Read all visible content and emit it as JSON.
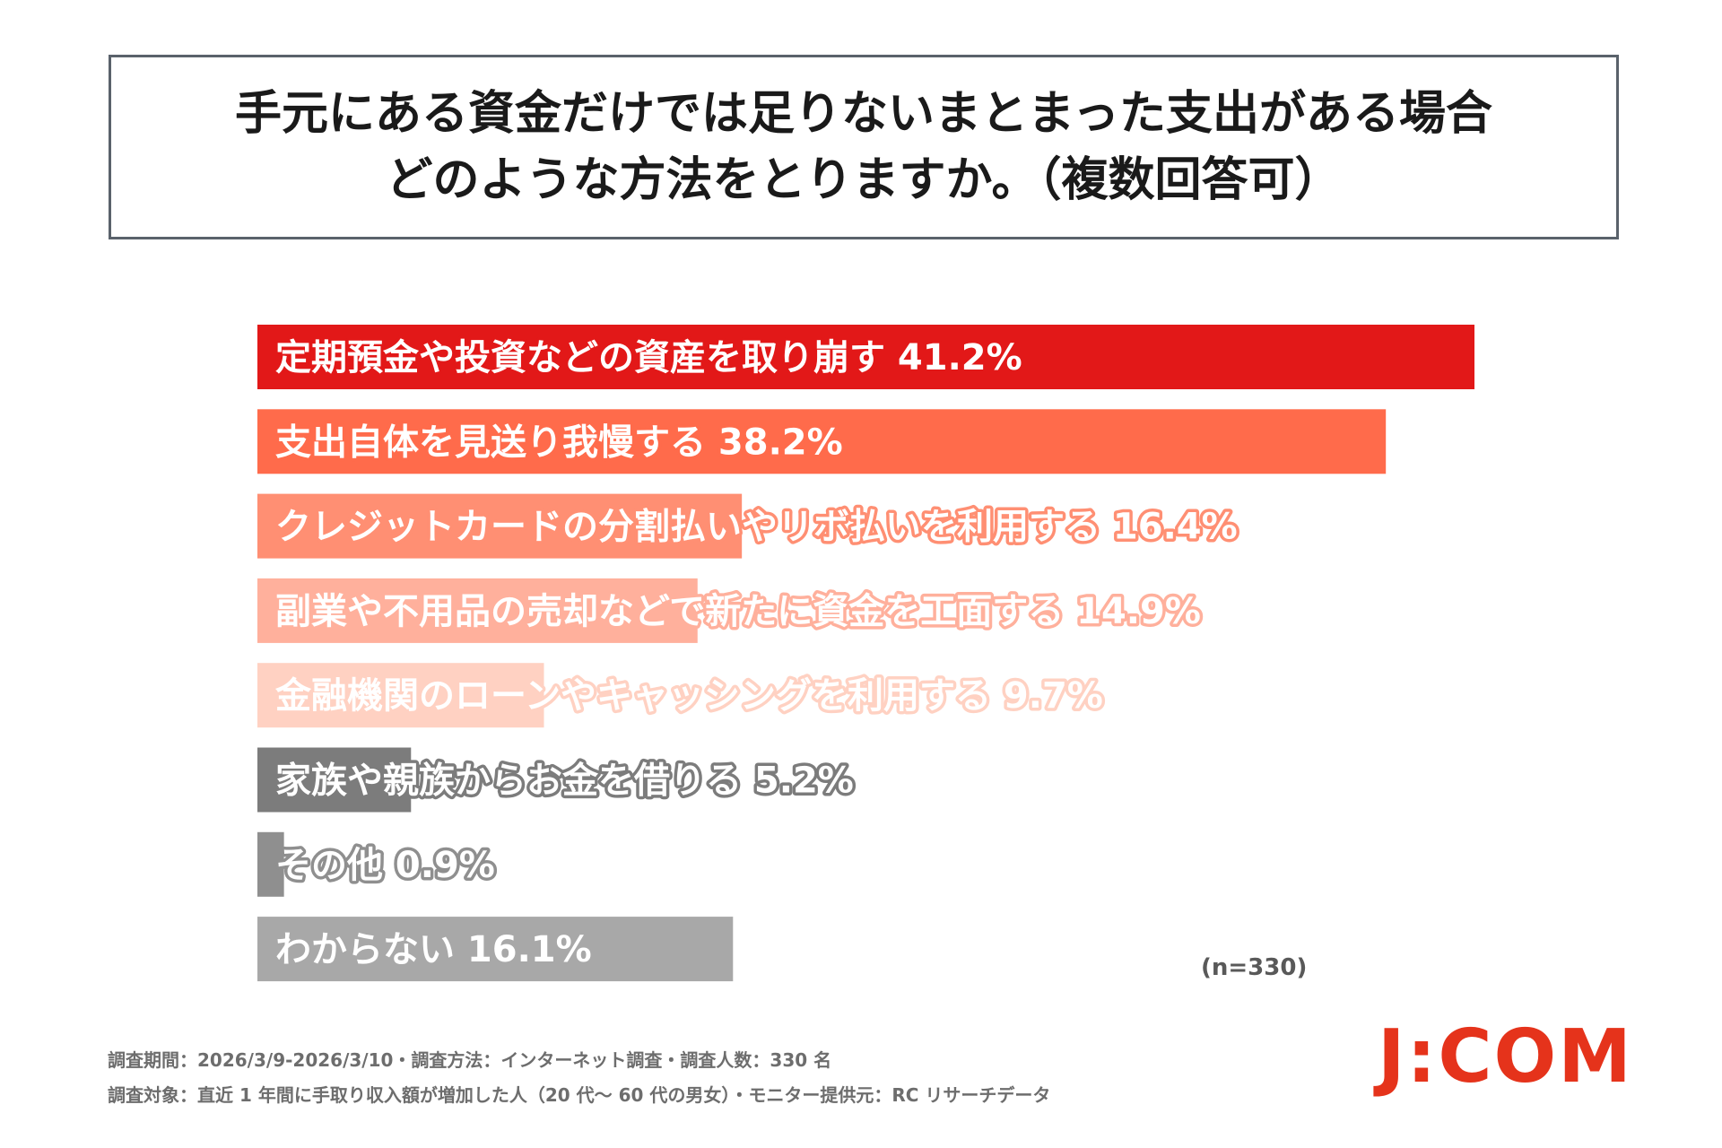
{
  "title": {
    "line1": "手元にある資金だけでは足りないまとまった支出がある場合",
    "line2": "どのような方法をとりますか。（複数回答可）"
  },
  "chart_data": {
    "type": "bar",
    "orientation": "horizontal",
    "categories": [
      "定期預金や投資などの資産を取り崩す",
      "支出自体を見送り我慢する",
      "クレジットカードの分割払いやリボ払いを利用する",
      "副業や不用品の売却などで新たに資金を工面する",
      "金融機関のローンやキャッシングを利用する",
      "家族や親族からお金を借りる",
      "その他",
      "わからない"
    ],
    "values": [
      41.2,
      38.2,
      16.4,
      14.9,
      9.7,
      5.2,
      0.9,
      16.1
    ],
    "value_labels": [
      "41.2%",
      "38.2%",
      "16.4%",
      "14.9%",
      "9.7%",
      "5.2%",
      "0.9%",
      "16.1%"
    ],
    "colors": [
      "#e21818",
      "#ff6b4b",
      "#ff8f73",
      "#ffb09c",
      "#ffd1c2",
      "#7c7c7c",
      "#8f8f8f",
      "#a8a8a8"
    ],
    "ylim": [
      0,
      41.2
    ]
  },
  "note": "(n=330)",
  "footer": {
    "line1": "調査期間：2026/3/9-2026/3/10・調査方法：インターネット調査・調査人数：330 名",
    "line2": "調査対象：直近 1 年間に手取り収入額が増加した人（20 代～ 60 代の男女）・モニター提供元：RC リサーチデータ"
  },
  "logo": {
    "part1": "J",
    "sep": ":",
    "part2": "COM",
    "color": "#e5331b"
  }
}
